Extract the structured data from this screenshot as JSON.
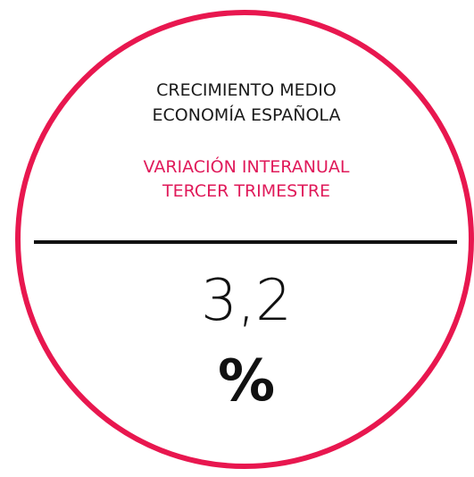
{
  "heading": {
    "lines": [
      "CRECIMIENTO MEDIO",
      "ECONOMÍA ESPAÑOLA"
    ]
  },
  "subheading": {
    "lines": [
      "VARIACIÓN INTERANUAL",
      "TERCER TRIMESTRE"
    ]
  },
  "figure": {
    "value": "3,2",
    "unit": "%"
  }
}
